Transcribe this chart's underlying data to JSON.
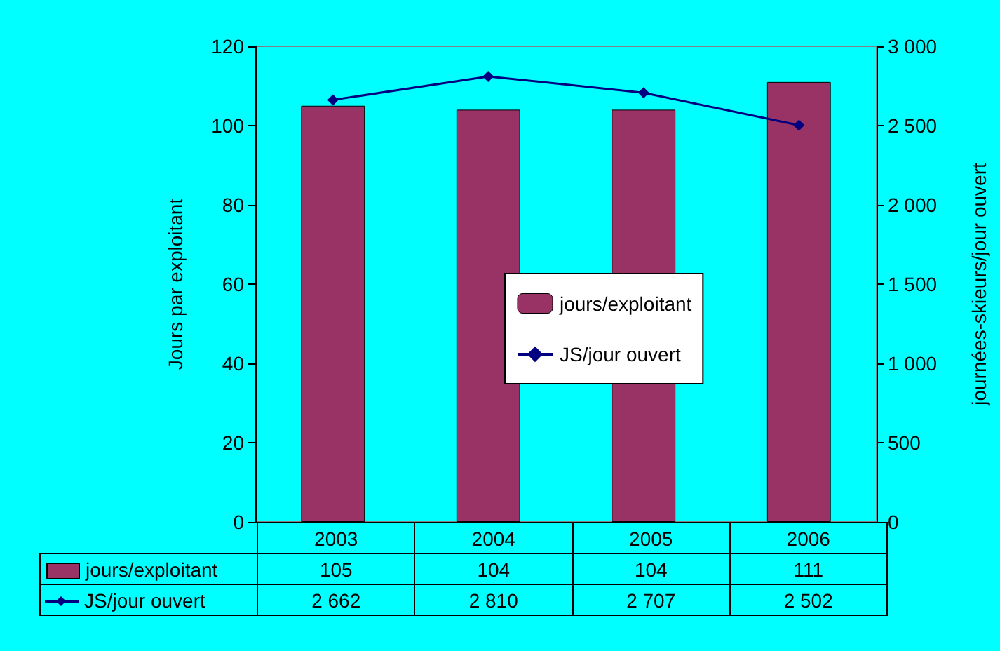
{
  "chart_data": {
    "type": "bar",
    "categories": [
      "2003",
      "2004",
      "2005",
      "2006"
    ],
    "series": [
      {
        "name": "jours/exploitant",
        "color": "#993366",
        "values": [
          105,
          104,
          104,
          111
        ],
        "value_labels": [
          "105",
          "104",
          "104",
          "111"
        ]
      },
      {
        "name": "JS/jour ouvert",
        "type": "line",
        "axis": "y2",
        "color": "#000080",
        "values": [
          2662,
          2810,
          2707,
          2502
        ],
        "value_labels": [
          "2 662",
          "2 810",
          "2 707",
          "2 502"
        ]
      }
    ],
    "ylabel": "Jours par exploitant",
    "y2label": "journées-skieurs/jour ouvert",
    "ylim": [
      0,
      120
    ],
    "yticks": [
      0,
      20,
      40,
      60,
      80,
      100,
      120
    ],
    "y2lim": [
      0,
      3000
    ],
    "y2ticks": [
      {
        "value": 0,
        "label": "0"
      },
      {
        "value": 500,
        "label": "500"
      },
      {
        "value": 1000,
        "label": "1 000"
      },
      {
        "value": 1500,
        "label": "1 500"
      },
      {
        "value": 2000,
        "label": "2 000"
      },
      {
        "value": 2500,
        "label": "2 500"
      },
      {
        "value": 3000,
        "label": "3 000"
      }
    ],
    "marker": "diamond",
    "line_style": "solid",
    "legend": "center",
    "grid": false
  }
}
